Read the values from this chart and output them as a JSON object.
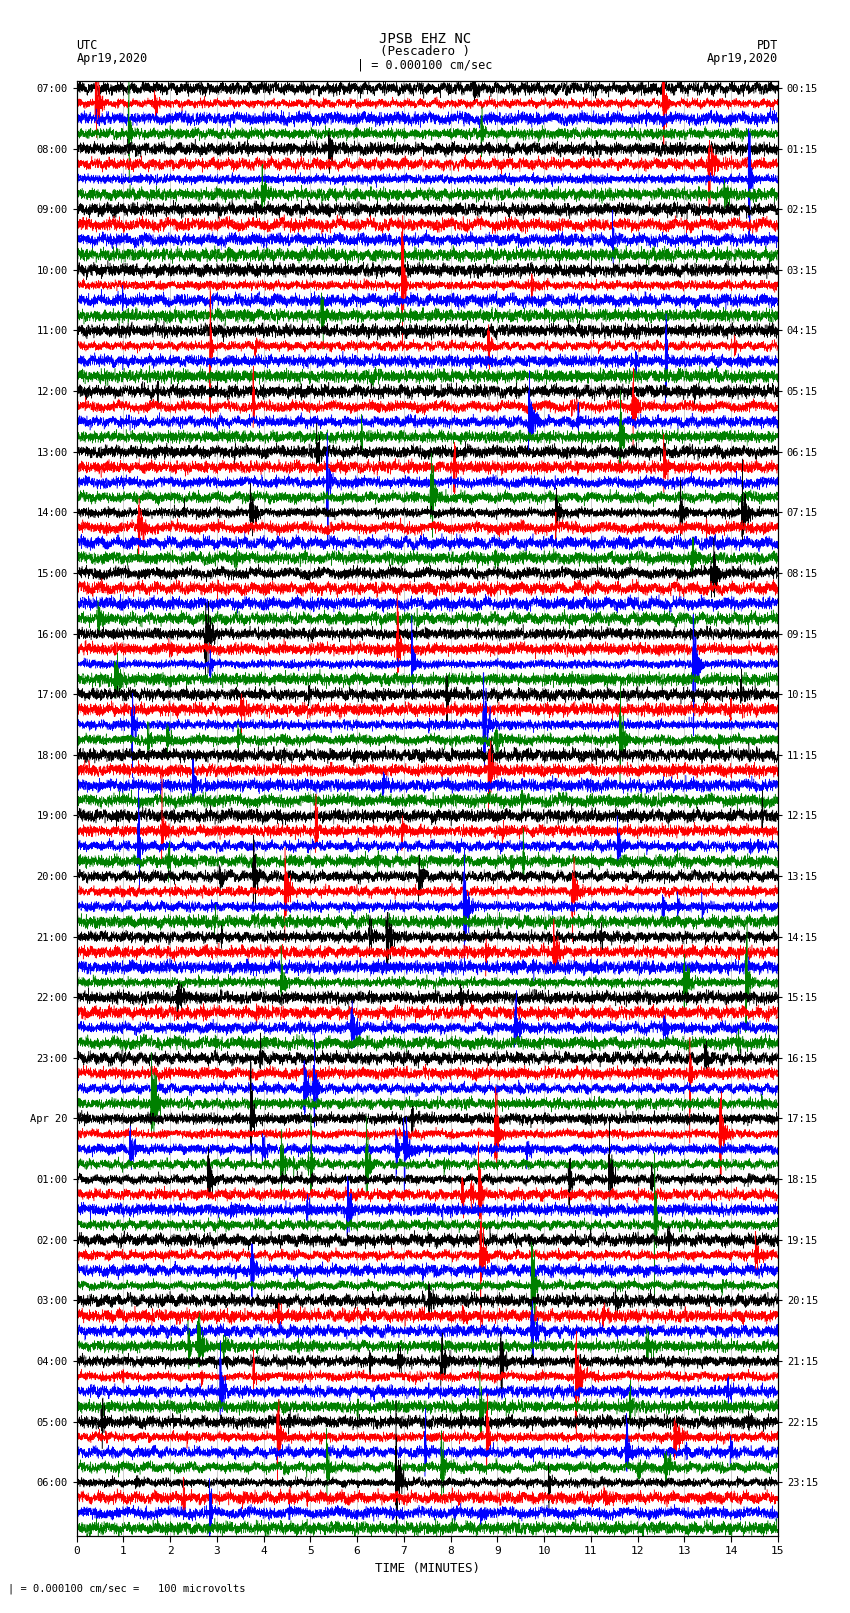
{
  "title_line1": "JPSB EHZ NC",
  "title_line2": "(Pescadero )",
  "scale_text": "| = 0.000100 cm/sec",
  "utc_label": "UTC",
  "utc_date": "Apr19,2020",
  "pdt_label": "PDT",
  "pdt_date": "Apr19,2020",
  "xlabel": "TIME (MINUTES)",
  "footnote": "| = 0.000100 cm/sec =   100 microvolts",
  "left_times": [
    "07:00",
    "08:00",
    "09:00",
    "10:00",
    "11:00",
    "12:00",
    "13:00",
    "14:00",
    "15:00",
    "16:00",
    "17:00",
    "18:00",
    "19:00",
    "20:00",
    "21:00",
    "22:00",
    "23:00",
    "Apr 20",
    "01:00",
    "02:00",
    "03:00",
    "04:00",
    "05:00",
    "06:00"
  ],
  "right_times": [
    "00:15",
    "01:15",
    "02:15",
    "03:15",
    "04:15",
    "05:15",
    "06:15",
    "07:15",
    "08:15",
    "09:15",
    "10:15",
    "11:15",
    "12:15",
    "13:15",
    "14:15",
    "15:15",
    "16:15",
    "17:15",
    "18:15",
    "19:15",
    "20:15",
    "21:15",
    "22:15",
    "23:15"
  ],
  "n_rows": 24,
  "traces_per_row": 4,
  "colors": [
    "black",
    "red",
    "blue",
    "green"
  ],
  "fig_width": 8.5,
  "fig_height": 16.13,
  "bg_color": "white",
  "xmin": 0,
  "xmax": 15,
  "xticks": [
    0,
    1,
    2,
    3,
    4,
    5,
    6,
    7,
    8,
    9,
    10,
    11,
    12,
    13,
    14,
    15
  ]
}
